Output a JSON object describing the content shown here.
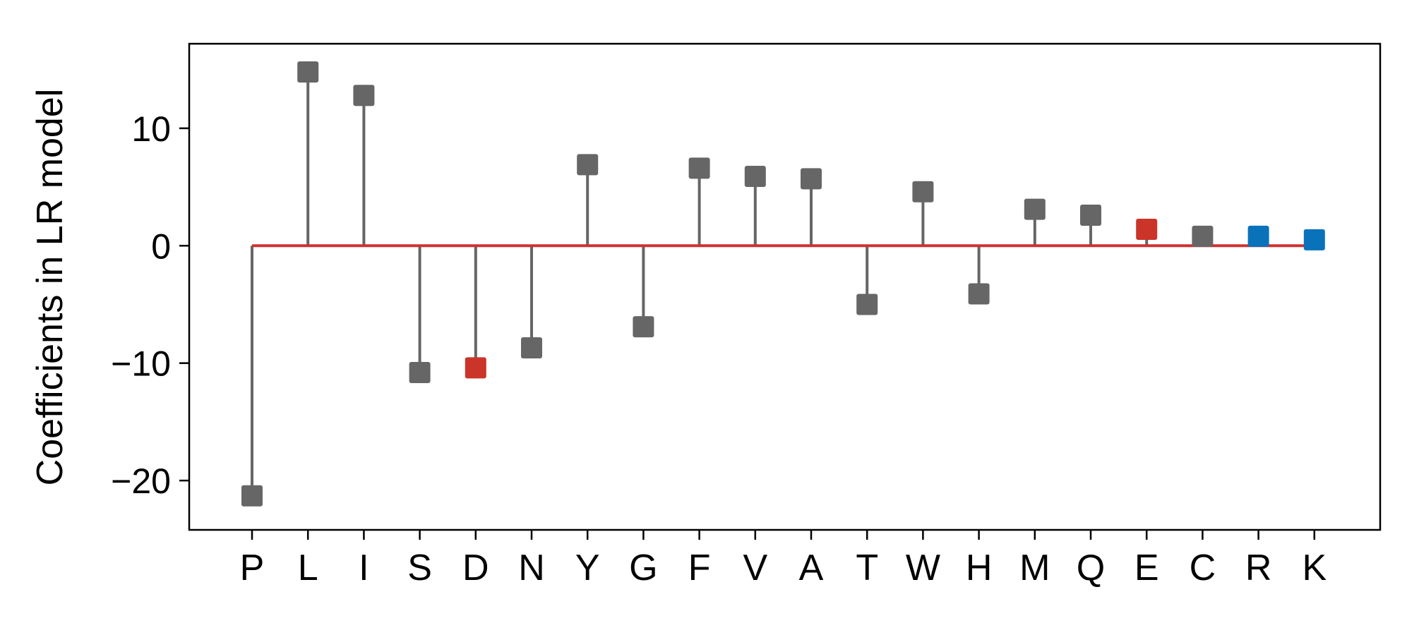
{
  "chart_data": {
    "type": "stem",
    "categories": [
      "P",
      "L",
      "I",
      "S",
      "D",
      "N",
      "Y",
      "G",
      "F",
      "V",
      "A",
      "T",
      "W",
      "H",
      "M",
      "Q",
      "E",
      "C",
      "R",
      "K"
    ],
    "values": [
      -21.3,
      14.8,
      12.8,
      -10.8,
      -10.4,
      -8.7,
      6.9,
      -6.9,
      6.6,
      5.9,
      5.7,
      -5.0,
      4.6,
      -4.1,
      3.1,
      2.6,
      1.4,
      0.8,
      0.8,
      0.5
    ],
    "marker_colors": [
      "#666666",
      "#666666",
      "#666666",
      "#666666",
      "#cb3428",
      "#666666",
      "#666666",
      "#666666",
      "#666666",
      "#666666",
      "#666666",
      "#666666",
      "#666666",
      "#666666",
      "#666666",
      "#666666",
      "#cb3428",
      "#666666",
      "#0a72bb",
      "#0a72bb"
    ],
    "stem_color": "#666666",
    "baseline_color": "#d03030",
    "ylabel": "Coefficients in LR model",
    "xlabel": "",
    "ylim": [
      -24.2,
      17.2
    ],
    "yticks": [
      -20,
      -10,
      0,
      10
    ],
    "ytick_labels": [
      "−20",
      "−10",
      "0",
      "10"
    ],
    "grid": false,
    "legend": "none"
  }
}
